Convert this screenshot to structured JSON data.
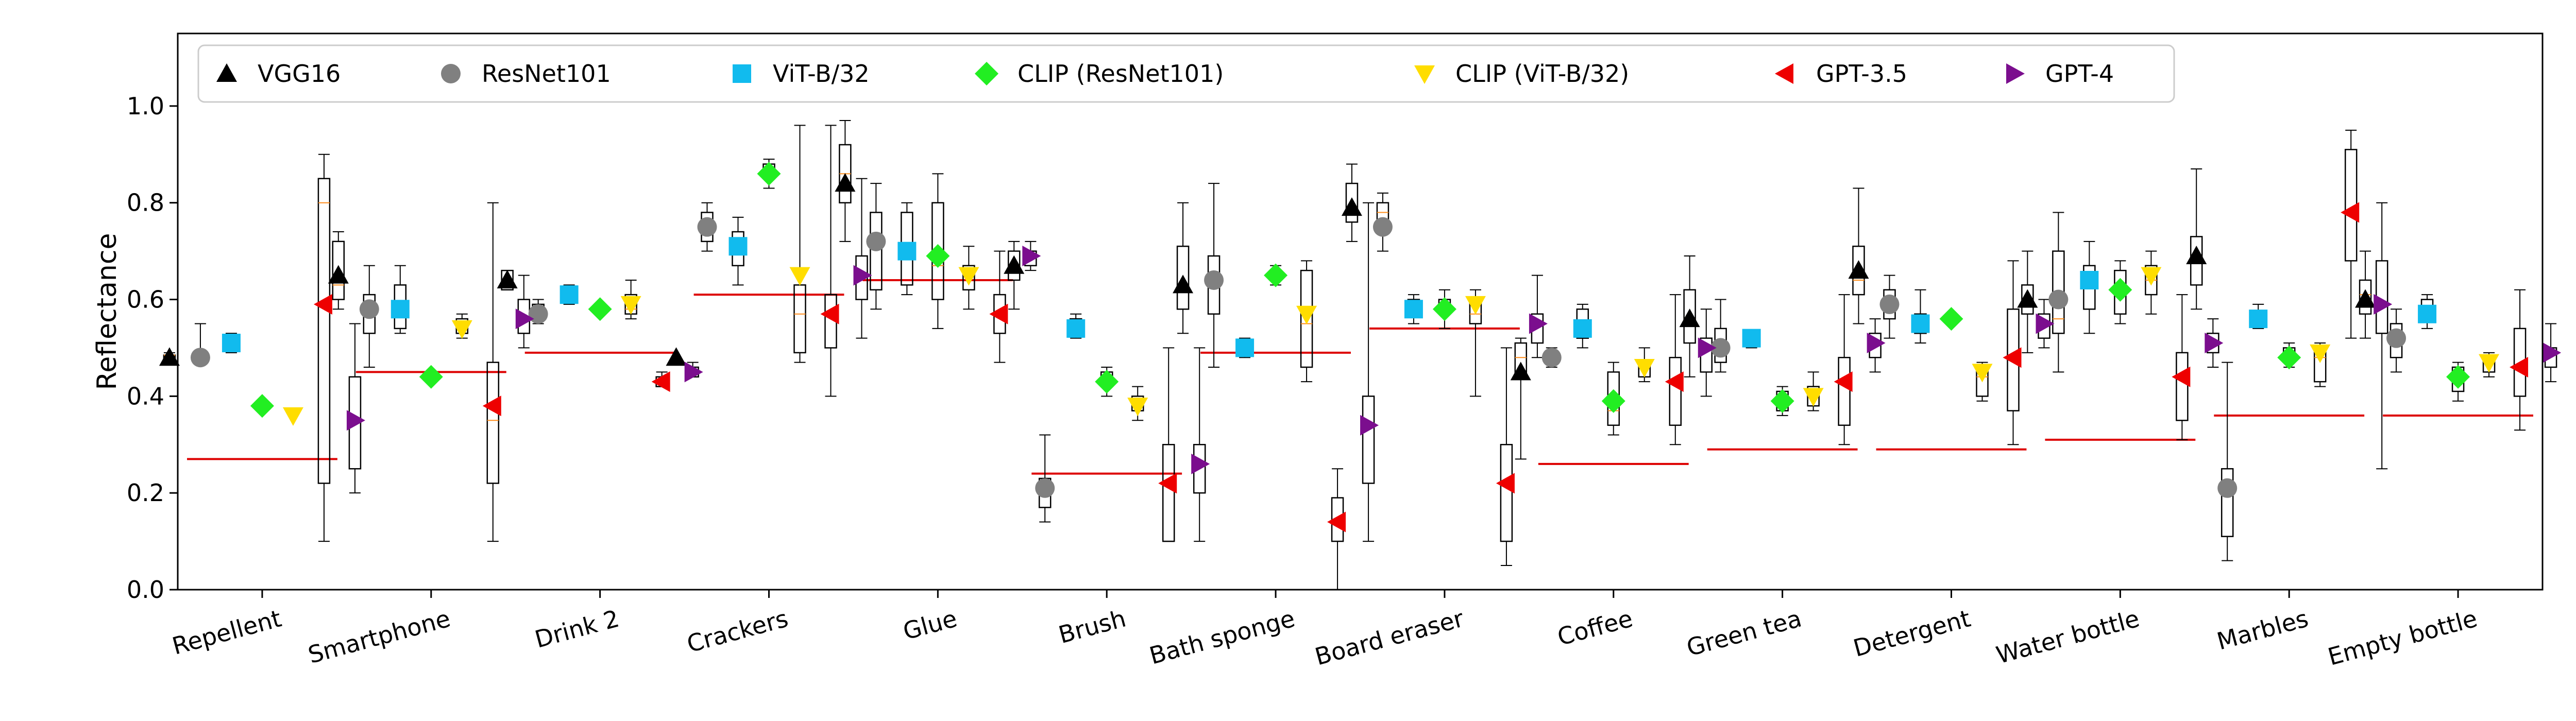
{
  "chart_data": {
    "type": "scatter",
    "title": "",
    "xlabel": "",
    "ylabel": "Reflectance",
    "ylim": [
      0.0,
      1.15
    ],
    "yticks": [
      "0.0",
      "0.2",
      "0.4",
      "0.6",
      "0.8",
      "1.0"
    ],
    "grid": false,
    "legend_position": "top",
    "categories": [
      "Repellent",
      "Smartphone",
      "Drink 2",
      "Crackers",
      "Glue",
      "Brush",
      "Bath sponge",
      "Board eraser",
      "Coffee",
      "Green tea",
      "Detergent",
      "Water bottle",
      "Marbles",
      "Empty bottle"
    ],
    "reference_line": {
      "color": "#dd0000",
      "values": [
        0.27,
        0.45,
        0.49,
        0.61,
        0.64,
        0.24,
        0.49,
        0.54,
        0.26,
        0.29,
        0.29,
        0.31,
        0.36,
        0.36
      ]
    },
    "series": [
      {
        "name": "VGG16",
        "marker": "triangle-up",
        "color": "#000000",
        "values": [
          0.48,
          0.65,
          0.64,
          0.48,
          0.84,
          0.67,
          0.63,
          0.79,
          0.45,
          0.56,
          0.66,
          0.6,
          0.69,
          0.6
        ],
        "box": [
          [
            0.475,
            0.475,
            0.485,
            0.485,
            0.49
          ],
          [
            0.58,
            0.6,
            0.63,
            0.72,
            0.74
          ],
          [
            0.62,
            0.62,
            0.63,
            0.66,
            0.66
          ],
          null,
          [
            0.72,
            0.8,
            0.86,
            0.92,
            0.97
          ],
          [
            0.58,
            0.64,
            0.67,
            0.7,
            0.72
          ],
          [
            0.53,
            0.58,
            0.62,
            0.71,
            0.8
          ],
          [
            0.72,
            0.76,
            0.79,
            0.84,
            0.88
          ],
          [
            0.27,
            0.44,
            0.48,
            0.51,
            0.52
          ],
          [
            0.44,
            0.51,
            0.56,
            0.62,
            0.69
          ],
          [
            0.55,
            0.61,
            0.64,
            0.71,
            0.83
          ],
          [
            0.49,
            0.57,
            0.6,
            0.63,
            0.7
          ],
          [
            0.58,
            0.63,
            0.69,
            0.73,
            0.87
          ],
          [
            0.52,
            0.57,
            0.61,
            0.64,
            0.7
          ]
        ]
      },
      {
        "name": "ResNet101",
        "marker": "circle",
        "color": "#808080",
        "values": [
          0.48,
          0.58,
          0.57,
          0.75,
          0.72,
          0.21,
          0.64,
          0.75,
          0.48,
          0.5,
          0.59,
          0.6,
          0.21,
          0.52
        ],
        "box": [
          [
            0.47,
            0.47,
            0.48,
            0.49,
            0.55
          ],
          [
            0.46,
            0.53,
            0.58,
            0.61,
            0.67
          ],
          [
            0.55,
            0.56,
            0.57,
            0.59,
            0.6
          ],
          [
            0.7,
            0.72,
            0.75,
            0.78,
            0.8
          ],
          [
            0.58,
            0.62,
            0.71,
            0.78,
            0.84
          ],
          [
            0.14,
            0.17,
            0.21,
            0.23,
            0.32
          ],
          [
            0.46,
            0.57,
            0.63,
            0.69,
            0.84
          ],
          [
            0.7,
            0.74,
            0.78,
            0.8,
            0.82
          ],
          [
            0.46,
            0.47,
            0.48,
            0.49,
            0.5
          ],
          [
            0.45,
            0.47,
            0.5,
            0.54,
            0.6
          ],
          [
            0.52,
            0.56,
            0.6,
            0.62,
            0.65
          ],
          [
            0.45,
            0.53,
            0.56,
            0.7,
            0.78
          ],
          [
            0.06,
            0.11,
            0.2,
            0.25,
            0.47
          ],
          [
            0.45,
            0.48,
            0.52,
            0.55,
            0.58
          ]
        ]
      },
      {
        "name": "ViT-B/32",
        "marker": "square",
        "color": "#11bbee",
        "values": [
          0.51,
          0.58,
          0.61,
          0.71,
          0.7,
          0.54,
          0.5,
          0.58,
          0.54,
          0.52,
          0.55,
          0.64,
          0.56,
          0.57
        ],
        "box": [
          [
            0.49,
            0.5,
            0.51,
            0.52,
            0.53
          ],
          [
            0.53,
            0.54,
            0.57,
            0.63,
            0.67
          ],
          [
            0.59,
            0.6,
            0.61,
            0.62,
            0.63
          ],
          [
            0.63,
            0.67,
            0.72,
            0.74,
            0.77
          ],
          [
            0.61,
            0.63,
            0.7,
            0.78,
            0.8
          ],
          [
            0.52,
            0.53,
            0.54,
            0.56,
            0.57
          ],
          [
            0.48,
            0.49,
            0.5,
            0.51,
            0.52
          ],
          [
            0.55,
            0.57,
            0.58,
            0.6,
            0.61
          ],
          [
            0.5,
            0.52,
            0.55,
            0.58,
            0.59
          ],
          [
            0.5,
            0.51,
            0.52,
            0.53,
            0.53
          ],
          [
            0.51,
            0.53,
            0.55,
            0.57,
            0.62
          ],
          [
            0.53,
            0.58,
            0.63,
            0.67,
            0.72
          ],
          [
            0.54,
            0.55,
            0.56,
            0.57,
            0.59
          ],
          [
            0.54,
            0.56,
            0.58,
            0.6,
            0.61
          ]
        ]
      },
      {
        "name": "CLIP (ResNet101)",
        "marker": "diamond",
        "color": "#22ee22",
        "values": [
          0.38,
          0.44,
          0.58,
          0.86,
          0.69,
          0.43,
          0.65,
          0.58,
          0.39,
          0.39,
          0.56,
          0.62,
          0.48,
          0.44
        ],
        "box": [
          null,
          null,
          null,
          [
            0.83,
            0.85,
            0.86,
            0.88,
            0.89
          ],
          [
            0.54,
            0.6,
            0.67,
            0.8,
            0.86
          ],
          [
            0.4,
            0.42,
            0.43,
            0.45,
            0.46
          ],
          [
            0.63,
            0.64,
            0.65,
            0.66,
            0.67
          ],
          [
            0.54,
            0.57,
            0.59,
            0.6,
            0.62
          ],
          [
            0.32,
            0.34,
            0.37,
            0.45,
            0.47
          ],
          [
            0.36,
            0.37,
            0.39,
            0.41,
            0.42
          ],
          null,
          [
            0.55,
            0.57,
            0.62,
            0.66,
            0.68
          ],
          [
            0.46,
            0.47,
            0.48,
            0.5,
            0.51
          ],
          [
            0.39,
            0.41,
            0.44,
            0.46,
            0.47
          ]
        ]
      },
      {
        "name": "CLIP (ViT-B/32)",
        "marker": "triangle-down",
        "color": "#ffdd00",
        "values": [
          0.36,
          0.54,
          0.59,
          0.65,
          0.65,
          0.38,
          0.57,
          0.59,
          0.46,
          0.4,
          0.45,
          0.65,
          0.49,
          0.47
        ],
        "box": [
          null,
          [
            0.52,
            0.53,
            0.54,
            0.56,
            0.57
          ],
          [
            0.56,
            0.57,
            0.58,
            0.61,
            0.64
          ],
          [
            0.47,
            0.49,
            0.57,
            0.63,
            0.96
          ],
          [
            0.58,
            0.62,
            0.65,
            0.67,
            0.71
          ],
          [
            0.35,
            0.37,
            0.38,
            0.4,
            0.42
          ],
          [
            0.43,
            0.46,
            0.55,
            0.66,
            0.68
          ],
          [
            0.4,
            0.55,
            0.57,
            0.6,
            0.62
          ],
          [
            0.43,
            0.44,
            0.46,
            0.47,
            0.5
          ],
          [
            0.37,
            0.38,
            0.4,
            0.42,
            0.45
          ],
          [
            0.39,
            0.4,
            0.44,
            0.46,
            0.47
          ],
          [
            0.57,
            0.61,
            0.64,
            0.67,
            0.7
          ],
          [
            0.42,
            0.43,
            0.48,
            0.5,
            0.51
          ],
          [
            0.44,
            0.45,
            0.47,
            0.48,
            0.49
          ]
        ]
      },
      {
        "name": "GPT-3.5",
        "marker": "triangle-left",
        "color": "#ee0000",
        "values": [
          0.59,
          0.38,
          0.43,
          0.57,
          0.57,
          0.22,
          0.14,
          0.22,
          0.43,
          0.43,
          0.48,
          0.44,
          0.78,
          0.46
        ],
        "box": [
          [
            0.1,
            0.22,
            0.8,
            0.85,
            0.9
          ],
          [
            0.1,
            0.22,
            0.35,
            0.47,
            0.8
          ],
          [
            0.42,
            0.42,
            0.43,
            0.44,
            0.45
          ],
          [
            0.4,
            0.5,
            0.57,
            0.61,
            0.96
          ],
          [
            0.47,
            0.53,
            0.57,
            0.61,
            0.7
          ],
          [
            0.1,
            0.1,
            0.22,
            0.3,
            0.5
          ],
          [
            0.0,
            0.1,
            0.14,
            0.19,
            0.25
          ],
          [
            0.05,
            0.1,
            0.22,
            0.3,
            0.5
          ],
          [
            0.3,
            0.34,
            0.43,
            0.48,
            0.61
          ],
          [
            0.3,
            0.34,
            0.43,
            0.48,
            0.61
          ],
          [
            0.3,
            0.37,
            0.48,
            0.58,
            0.68
          ],
          [
            0.31,
            0.35,
            0.44,
            0.49,
            0.61
          ],
          [
            0.52,
            0.68,
            0.78,
            0.91,
            0.95
          ],
          [
            0.33,
            0.4,
            0.46,
            0.54,
            0.62
          ]
        ]
      },
      {
        "name": "GPT-4",
        "marker": "triangle-right",
        "color": "#7b0e8e",
        "values": [
          0.35,
          0.56,
          0.45,
          0.65,
          0.69,
          0.26,
          0.34,
          0.55,
          0.5,
          0.51,
          0.55,
          0.51,
          0.59,
          0.49
        ],
        "box": [
          [
            0.2,
            0.25,
            0.35,
            0.44,
            0.55
          ],
          [
            0.5,
            0.53,
            0.56,
            0.6,
            0.65
          ],
          [
            0.44,
            0.44,
            0.45,
            0.46,
            0.47
          ],
          [
            0.52,
            0.6,
            0.65,
            0.69,
            0.85
          ],
          [
            0.66,
            0.67,
            0.69,
            0.7,
            0.72
          ],
          [
            0.1,
            0.2,
            0.26,
            0.3,
            0.5
          ],
          [
            0.1,
            0.22,
            0.34,
            0.4,
            0.8
          ],
          [
            0.48,
            0.51,
            0.55,
            0.57,
            0.65
          ],
          [
            0.4,
            0.45,
            0.5,
            0.52,
            0.58
          ],
          [
            0.45,
            0.48,
            0.51,
            0.53,
            0.56
          ],
          [
            0.5,
            0.52,
            0.55,
            0.57,
            0.6
          ],
          [
            0.46,
            0.49,
            0.51,
            0.53,
            0.56
          ],
          [
            0.25,
            0.53,
            0.59,
            0.68,
            0.8
          ],
          [
            0.43,
            0.46,
            0.49,
            0.5,
            0.55
          ]
        ]
      }
    ]
  }
}
